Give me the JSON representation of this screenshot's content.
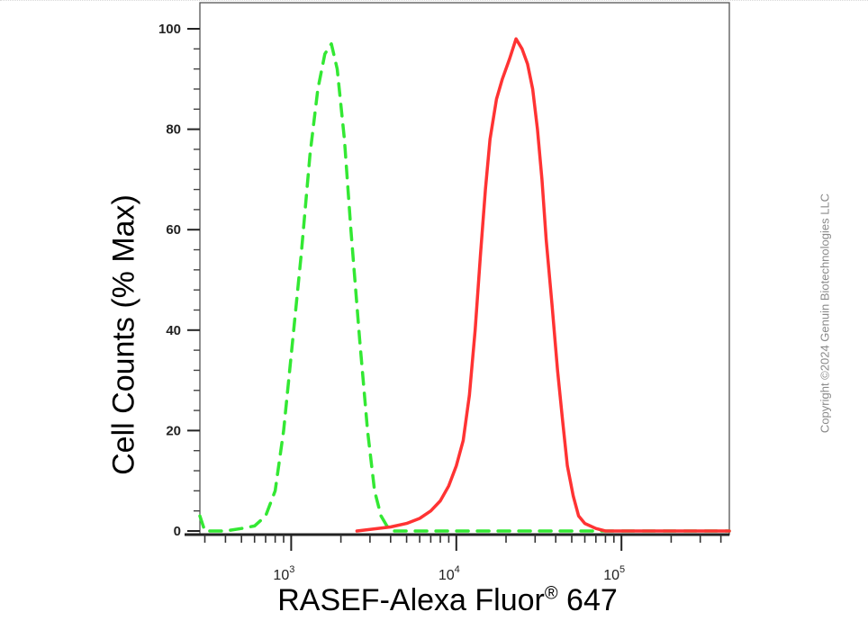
{
  "chart_data": {
    "type": "line",
    "xlabel_main": "RASEF-Alexa Fluor",
    "xlabel_sup": "®",
    "xlabel_tail": " 647",
    "ylabel": "Cell Counts (% Max)",
    "x_scale": "log",
    "xlim": [
      280,
      450000
    ],
    "ylim": [
      0,
      105
    ],
    "y_ticks": [
      0,
      20,
      40,
      60,
      80,
      100
    ],
    "x_ticks": [
      {
        "value": 1000,
        "label_base": "10",
        "label_exp": "3"
      },
      {
        "value": 10000,
        "label_base": "10",
        "label_exp": "4"
      },
      {
        "value": 100000,
        "label_base": "10",
        "label_exp": "5"
      }
    ],
    "grid": false,
    "legend": "none",
    "series": [
      {
        "color": "#33e833",
        "style": "dashed",
        "points": [
          [
            280,
            3
          ],
          [
            300,
            0
          ],
          [
            400,
            0
          ],
          [
            500,
            0.5
          ],
          [
            600,
            1
          ],
          [
            700,
            3
          ],
          [
            800,
            8
          ],
          [
            900,
            20
          ],
          [
            1000,
            35
          ],
          [
            1150,
            55
          ],
          [
            1300,
            75
          ],
          [
            1450,
            88
          ],
          [
            1600,
            95
          ],
          [
            1750,
            97
          ],
          [
            1900,
            92
          ],
          [
            2100,
            78
          ],
          [
            2300,
            60
          ],
          [
            2600,
            38
          ],
          [
            2900,
            20
          ],
          [
            3200,
            8
          ],
          [
            3500,
            3
          ],
          [
            3800,
            1
          ],
          [
            4200,
            0
          ],
          [
            5000,
            0
          ],
          [
            450000,
            0
          ]
        ]
      },
      {
        "color": "#ff3333",
        "style": "solid",
        "points": [
          [
            2500,
            0
          ],
          [
            3000,
            0.3
          ],
          [
            4000,
            0.8
          ],
          [
            5000,
            1.5
          ],
          [
            6000,
            2.5
          ],
          [
            7000,
            4
          ],
          [
            8000,
            6
          ],
          [
            9000,
            9
          ],
          [
            10000,
            13
          ],
          [
            11000,
            18
          ],
          [
            12000,
            27
          ],
          [
            13000,
            40
          ],
          [
            14000,
            55
          ],
          [
            15000,
            68
          ],
          [
            16000,
            78
          ],
          [
            17500,
            86
          ],
          [
            19000,
            90
          ],
          [
            21000,
            94
          ],
          [
            23000,
            98
          ],
          [
            25000,
            96
          ],
          [
            27000,
            93
          ],
          [
            29000,
            88
          ],
          [
            31000,
            80
          ],
          [
            33000,
            70
          ],
          [
            35000,
            58
          ],
          [
            38000,
            45
          ],
          [
            41000,
            32
          ],
          [
            44000,
            22
          ],
          [
            47000,
            13
          ],
          [
            51000,
            7
          ],
          [
            55000,
            3
          ],
          [
            60000,
            1.5
          ],
          [
            70000,
            0.5
          ],
          [
            80000,
            0
          ],
          [
            450000,
            0
          ]
        ]
      }
    ]
  },
  "copyright": "Copyright ©2024 Genuin Biotechnologies LLC"
}
